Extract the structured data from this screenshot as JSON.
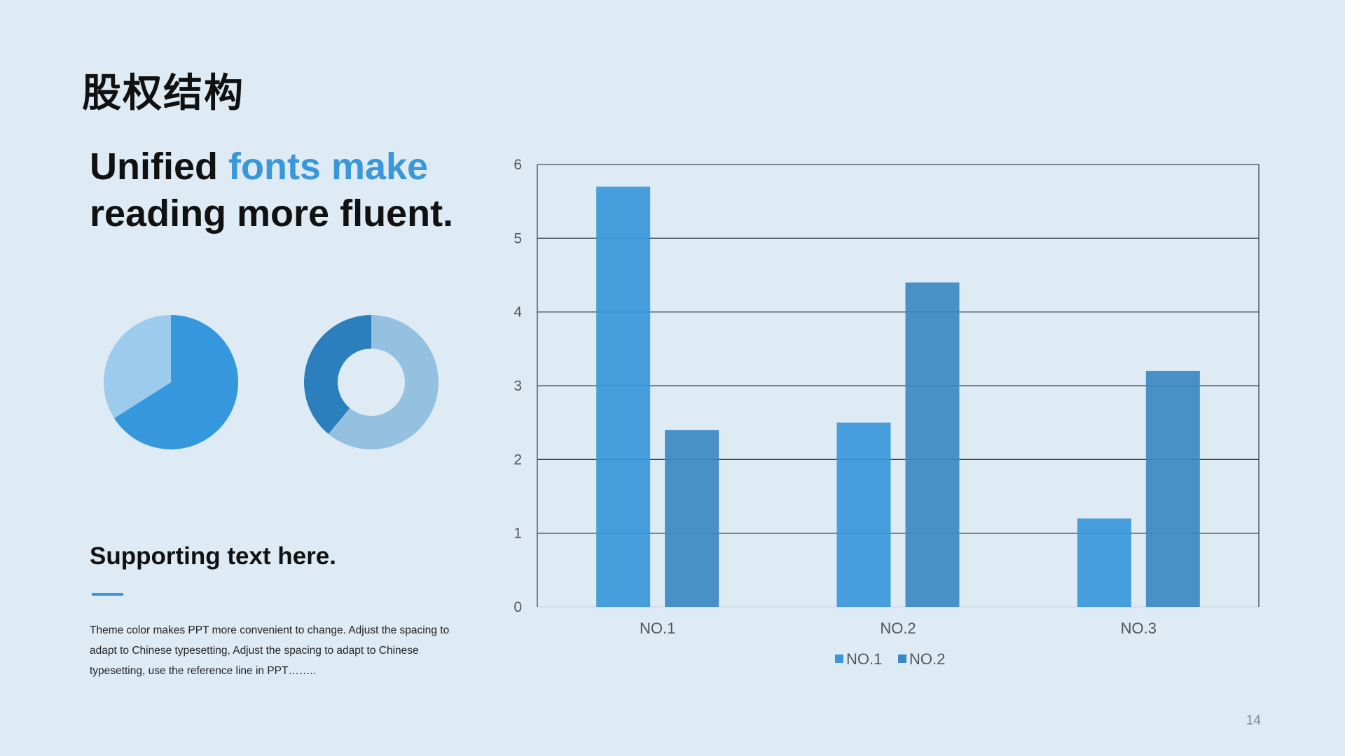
{
  "slide": {
    "title": "股权结构",
    "headline_part1": "Unified ",
    "headline_accent": "fonts make",
    "headline_part2": "reading more fluent.",
    "support_title": "Supporting text here.",
    "body": "Theme color makes PPT more convenient  to change.  Adjust the spacing to adapt to Chinese typesetting,  Adjust the spacing to adapt to Chinese typesetting,  use the reference line in PPT……..",
    "page_number": "14"
  },
  "colors": {
    "background": "#deebf5",
    "accent": "#3a97d9",
    "series1": "#3a97d9",
    "series2": "#3a88c3",
    "pie_main": "#3698dc",
    "pie_light": "#9ccbee",
    "donut_dark": "#2a7fbc",
    "donut_light": "#95c1e1"
  },
  "chart_data": [
    {
      "type": "bar",
      "categories": [
        "NO.1",
        "NO.2",
        "NO.3"
      ],
      "series": [
        {
          "name": "NO.1",
          "values": [
            5.7,
            2.5,
            1.2
          ]
        },
        {
          "name": "NO.2",
          "values": [
            2.4,
            4.4,
            3.2
          ]
        }
      ],
      "ylim": [
        0,
        6
      ],
      "yticks": [
        "0",
        "1",
        "2",
        "3",
        "4",
        "5",
        "6"
      ],
      "grid": true,
      "legend": "bottom"
    },
    {
      "type": "pie",
      "values": [
        66,
        34
      ]
    },
    {
      "type": "pie",
      "donut": true,
      "values": [
        61,
        39
      ]
    }
  ]
}
